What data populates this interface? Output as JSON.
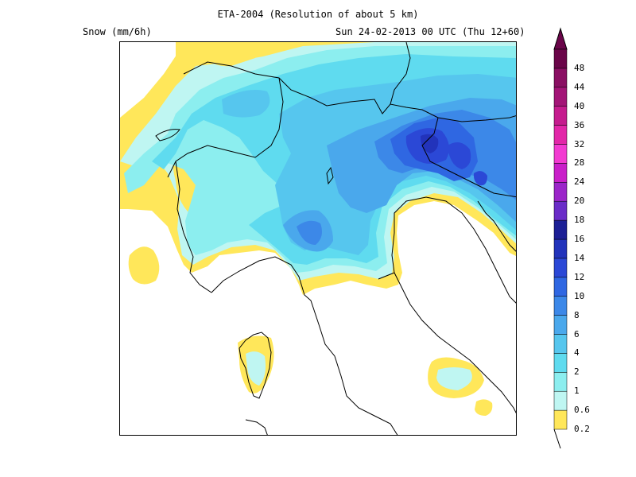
{
  "header": {
    "title": "ETA-2004 (Resolution of about 5 km)",
    "field_label": "Snow (mm/6h)",
    "valid_time": "Sun 24-02-2013 00 UTC (Thu 12+60)"
  },
  "legend": {
    "levels": [
      "0.2",
      "0.6",
      "1",
      "2",
      "4",
      "6",
      "8",
      "10",
      "12",
      "14",
      "16",
      "18",
      "20",
      "24",
      "28",
      "32",
      "36",
      "40",
      "44",
      "48"
    ],
    "colors": [
      "#ffe75a",
      "#bff6f2",
      "#8ceeef",
      "#5fdbef",
      "#56c6ee",
      "#4aa8ec",
      "#3c88e8",
      "#2f67e2",
      "#2b48d6",
      "#2233bb",
      "#1c1f95",
      "#6a2cc8",
      "#9b25c9",
      "#c91fc9",
      "#f23bd1",
      "#e227a8",
      "#c51c8e",
      "#a31577",
      "#8a0f63",
      "#6a0549"
    ]
  },
  "map": {
    "base_color": "#ffffff",
    "border_color": "#000000"
  }
}
